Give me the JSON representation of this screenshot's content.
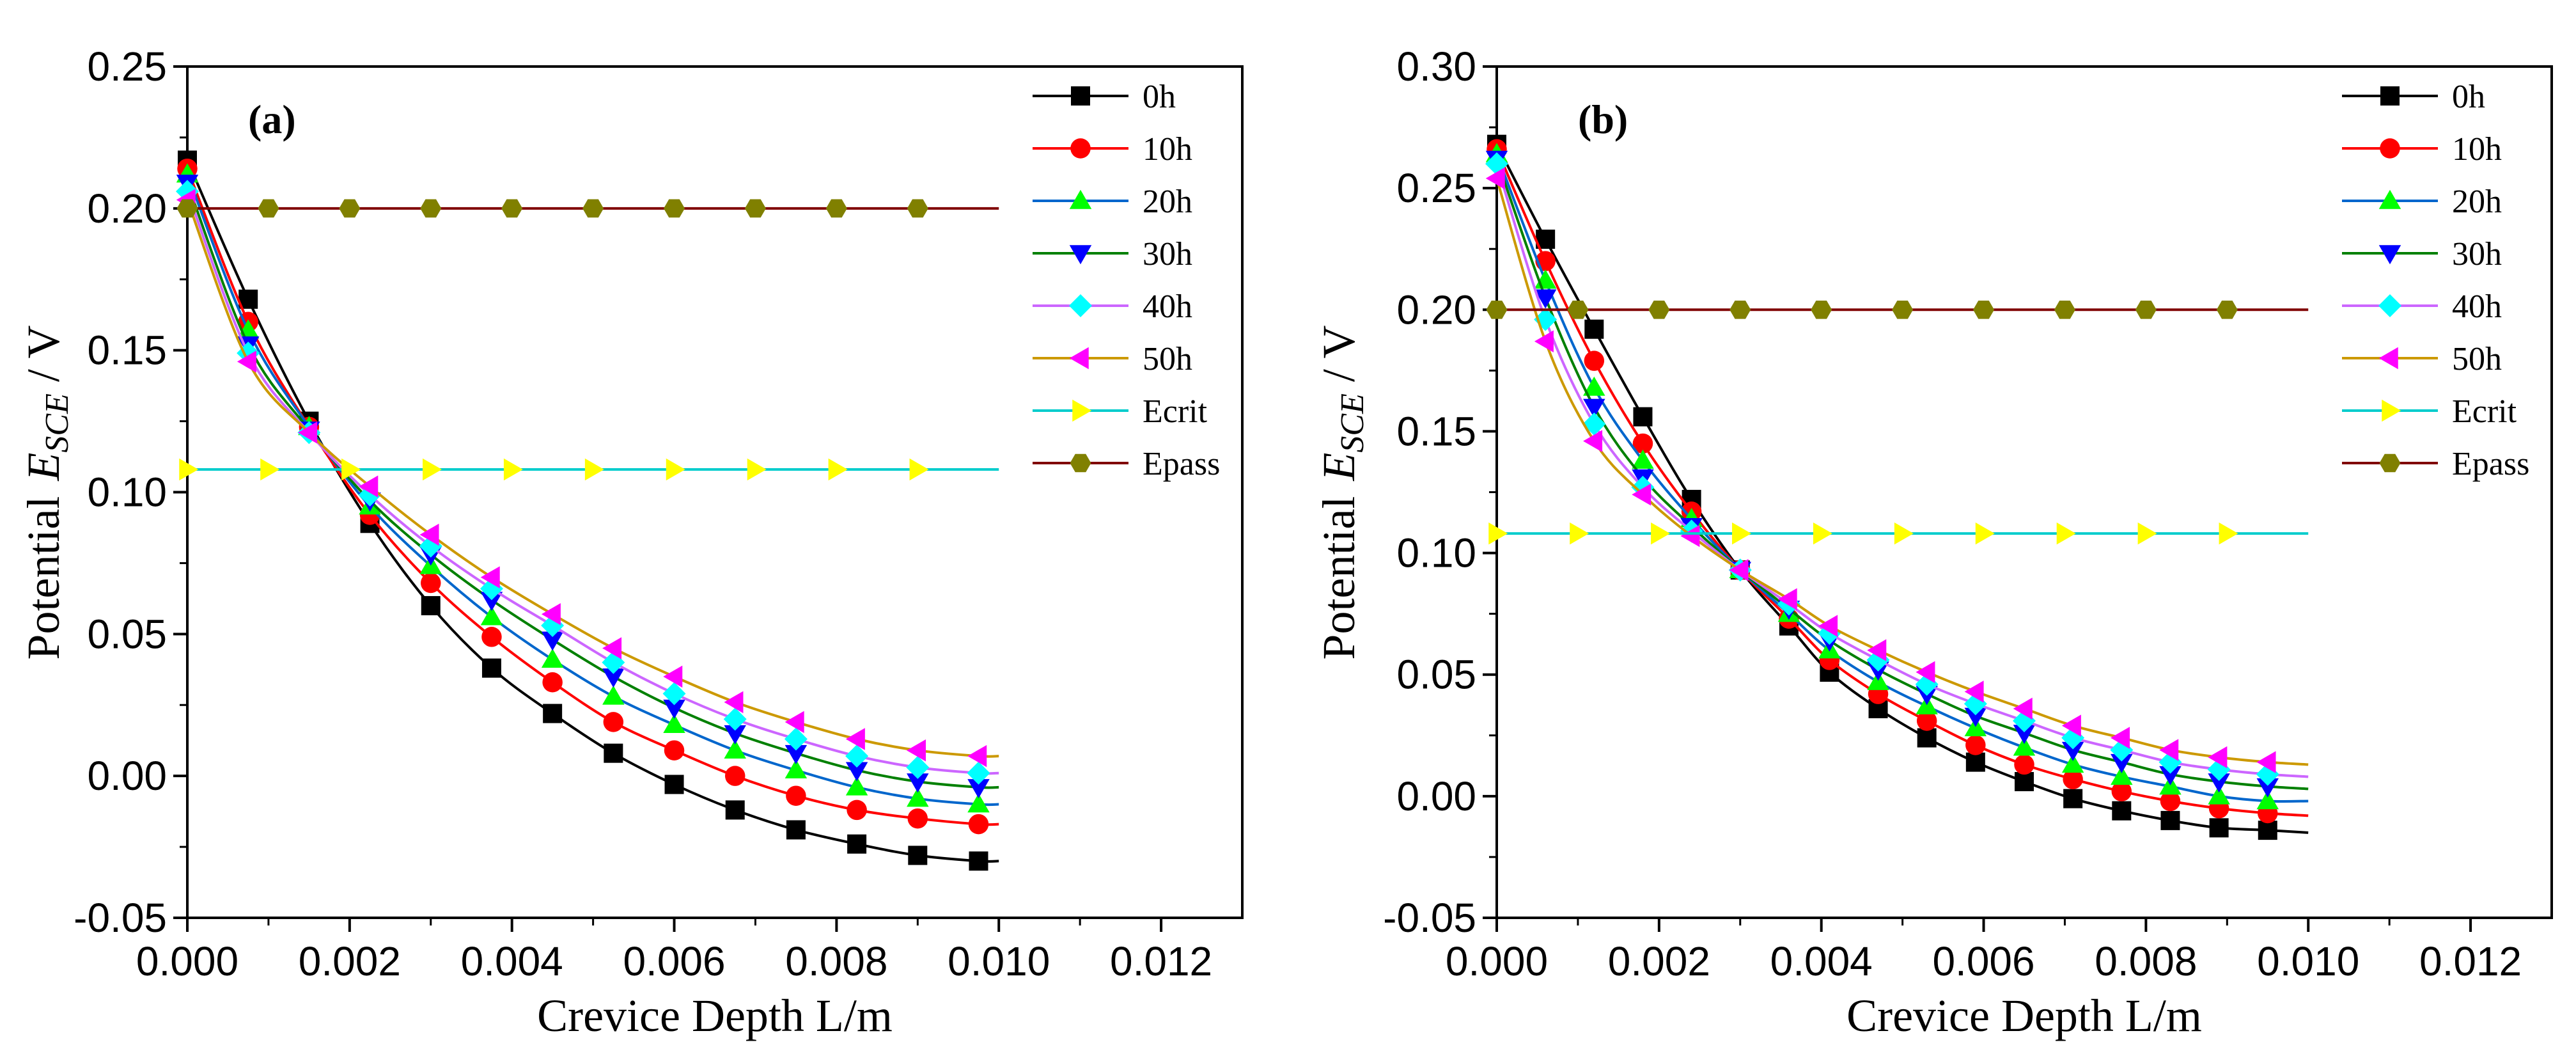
{
  "chart_data": [
    {
      "type": "line",
      "panel_label": "(a)",
      "xlabel": "Crevice Depth  L/m",
      "ylabel_prefix": "Potential",
      "ylabel_symbol": "E",
      "ylabel_subscript": "SCE",
      "ylabel_suffix": " / V",
      "xlim": [
        0,
        0.013
      ],
      "ylim": [
        -0.05,
        0.25
      ],
      "x_ticks": [
        "0.000",
        "0.002",
        "0.004",
        "0.006",
        "0.008",
        "0.010",
        "0.012"
      ],
      "y_ticks": [
        "-0.05",
        "0.00",
        "0.05",
        "0.10",
        "0.15",
        "0.20",
        "0.25"
      ],
      "legend_position": "top-right",
      "x": [
        0.0,
        0.00075,
        0.0015,
        0.00225,
        0.003,
        0.00375,
        0.0045,
        0.00525,
        0.006,
        0.00675,
        0.0075,
        0.00825,
        0.009,
        0.00975
      ],
      "curve_x_end": 0.01,
      "series": [
        {
          "name": "0h",
          "values": [
            0.217,
            0.168,
            0.125,
            0.089,
            0.06,
            0.038,
            0.022,
            0.008,
            -0.003,
            -0.012,
            -0.019,
            -0.024,
            -0.028,
            -0.03
          ],
          "curve_end": -0.03
        },
        {
          "name": "10h",
          "values": [
            0.214,
            0.16,
            0.123,
            0.092,
            0.068,
            0.049,
            0.033,
            0.019,
            0.009,
            0.0,
            -0.007,
            -0.012,
            -0.015,
            -0.017
          ],
          "curve_end": -0.017
        },
        {
          "name": "20h",
          "values": [
            0.212,
            0.157,
            0.123,
            0.095,
            0.074,
            0.056,
            0.041,
            0.028,
            0.018,
            0.009,
            0.002,
            -0.004,
            -0.008,
            -0.01
          ],
          "curve_end": -0.01
        },
        {
          "name": "30h",
          "values": [
            0.209,
            0.152,
            0.122,
            0.097,
            0.078,
            0.062,
            0.048,
            0.035,
            0.024,
            0.015,
            0.008,
            0.002,
            -0.002,
            -0.004
          ],
          "curve_end": -0.004
        },
        {
          "name": "40h",
          "values": [
            0.206,
            0.149,
            0.121,
            0.099,
            0.081,
            0.066,
            0.053,
            0.04,
            0.029,
            0.02,
            0.013,
            0.007,
            0.003,
            0.001
          ],
          "curve_end": 0.001
        },
        {
          "name": "50h",
          "values": [
            0.203,
            0.146,
            0.121,
            0.102,
            0.085,
            0.07,
            0.057,
            0.045,
            0.035,
            0.026,
            0.019,
            0.013,
            0.009,
            0.007
          ],
          "curve_end": 0.007
        },
        {
          "name": "Ecrit",
          "x": [
            0.0,
            0.001,
            0.002,
            0.003,
            0.004,
            0.005,
            0.006,
            0.007,
            0.008,
            0.009
          ],
          "values": [
            0.108,
            0.108,
            0.108,
            0.108,
            0.108,
            0.108,
            0.108,
            0.108,
            0.108,
            0.108
          ],
          "line_x_end": 0.01
        },
        {
          "name": "Epass",
          "x": [
            0.0,
            0.001,
            0.002,
            0.003,
            0.004,
            0.005,
            0.006,
            0.007,
            0.008,
            0.009
          ],
          "values": [
            0.2,
            0.2,
            0.2,
            0.2,
            0.2,
            0.2,
            0.2,
            0.2,
            0.2,
            0.2
          ],
          "line_x_end": 0.01
        }
      ]
    },
    {
      "type": "line",
      "panel_label": "(b)",
      "xlabel": "Crevice Depth L/m",
      "ylabel_prefix": "Potential",
      "ylabel_symbol": "E",
      "ylabel_subscript": "SCE",
      "ylabel_suffix": " / V",
      "xlim": [
        0,
        0.013
      ],
      "ylim": [
        -0.05,
        0.3
      ],
      "x_ticks": [
        "0.000",
        "0.002",
        "0.004",
        "0.006",
        "0.008",
        "0.010",
        "0.012"
      ],
      "y_ticks": [
        "-0.05",
        "0.00",
        "0.05",
        "0.10",
        "0.15",
        "0.20",
        "0.25",
        "0.30"
      ],
      "legend_position": "top-right",
      "x": [
        0.0,
        0.0006,
        0.0012,
        0.0018,
        0.0024,
        0.003,
        0.0036,
        0.0041,
        0.0047,
        0.0053,
        0.0059,
        0.0065,
        0.0071,
        0.0077,
        0.0083,
        0.0089,
        0.0095
      ],
      "curve_x_end": 0.01,
      "series": [
        {
          "name": "0h",
          "values": [
            0.268,
            0.229,
            0.192,
            0.156,
            0.122,
            0.093,
            0.07,
            0.051,
            0.036,
            0.024,
            0.014,
            0.006,
            -0.001,
            -0.006,
            -0.01,
            -0.013,
            -0.014
          ],
          "curve_end": -0.015
        },
        {
          "name": "10h",
          "values": [
            0.266,
            0.22,
            0.179,
            0.145,
            0.117,
            0.093,
            0.073,
            0.056,
            0.042,
            0.031,
            0.021,
            0.013,
            0.007,
            0.002,
            -0.002,
            -0.005,
            -0.007
          ],
          "curve_end": -0.008
        },
        {
          "name": "20h",
          "values": [
            0.264,
            0.212,
            0.168,
            0.138,
            0.114,
            0.093,
            0.075,
            0.06,
            0.047,
            0.037,
            0.028,
            0.02,
            0.013,
            0.008,
            0.004,
            0.0,
            -0.002
          ],
          "curve_end": -0.002
        },
        {
          "name": "30h",
          "values": [
            0.262,
            0.205,
            0.16,
            0.131,
            0.111,
            0.093,
            0.077,
            0.064,
            0.052,
            0.042,
            0.033,
            0.026,
            0.019,
            0.014,
            0.009,
            0.006,
            0.004
          ],
          "curve_end": 0.003
        },
        {
          "name": "40h",
          "values": [
            0.26,
            0.196,
            0.153,
            0.127,
            0.109,
            0.093,
            0.079,
            0.067,
            0.056,
            0.046,
            0.038,
            0.031,
            0.024,
            0.019,
            0.014,
            0.011,
            0.009
          ],
          "curve_end": 0.008
        },
        {
          "name": "50h",
          "values": [
            0.254,
            0.187,
            0.146,
            0.124,
            0.107,
            0.093,
            0.081,
            0.07,
            0.06,
            0.051,
            0.043,
            0.036,
            0.029,
            0.024,
            0.019,
            0.016,
            0.014
          ],
          "curve_end": 0.013
        },
        {
          "name": "Ecrit",
          "x": [
            0.0,
            0.001,
            0.002,
            0.003,
            0.004,
            0.005,
            0.006,
            0.007,
            0.008,
            0.009
          ],
          "values": [
            0.108,
            0.108,
            0.108,
            0.108,
            0.108,
            0.108,
            0.108,
            0.108,
            0.108,
            0.108
          ],
          "line_x_end": 0.01
        },
        {
          "name": "Epass",
          "x": [
            0.0,
            0.001,
            0.002,
            0.003,
            0.004,
            0.005,
            0.006,
            0.007,
            0.008,
            0.009
          ],
          "values": [
            0.2,
            0.2,
            0.2,
            0.2,
            0.2,
            0.2,
            0.2,
            0.2,
            0.2,
            0.2
          ],
          "line_x_end": 0.01
        }
      ]
    }
  ],
  "series_styles": {
    "0h": {
      "line_color": "#000000",
      "marker_color": "#000000",
      "marker": "square"
    },
    "10h": {
      "line_color": "#ff0000",
      "marker_color": "#ff0000",
      "marker": "circle"
    },
    "20h": {
      "line_color": "#0066cc",
      "marker_color": "#00ff00",
      "marker": "triangle-up"
    },
    "30h": {
      "line_color": "#008000",
      "marker_color": "#0000ff",
      "marker": "triangle-down"
    },
    "40h": {
      "line_color": "#cc66ff",
      "marker_color": "#00ffff",
      "marker": "diamond"
    },
    "50h": {
      "line_color": "#cc9900",
      "marker_color": "#ff00ff",
      "marker": "triangle-left"
    },
    "Ecrit": {
      "line_color": "#00cccc",
      "marker_color": "#ffff00",
      "marker": "triangle-right"
    },
    "Epass": {
      "line_color": "#800000",
      "marker_color": "#808000",
      "marker": "hexagon"
    }
  }
}
